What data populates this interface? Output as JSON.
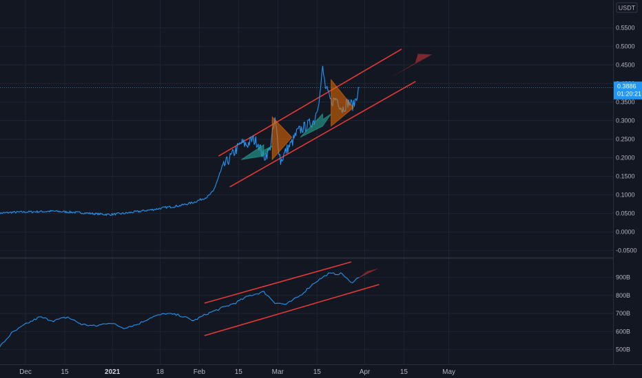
{
  "chart_data": [
    {
      "type": "line",
      "panel": "price",
      "currency": "USDT",
      "y_ticks": [
        "0.5500",
        "0.5000",
        "0.4500",
        "0.4000",
        "0.3500",
        "0.3000",
        "0.2500",
        "0.2000",
        "0.1500",
        "0.1000",
        "0.0500",
        "0.0000",
        "-0.0500"
      ],
      "current_price": "0.3886",
      "countdown": "01:20:21",
      "ylim": [
        -0.06,
        0.61
      ],
      "series_color": "#2196f3",
      "x": [
        "2020-11-21",
        "2020-11-26",
        "2020-12-01",
        "2020-12-06",
        "2020-12-11",
        "2020-12-16",
        "2020-12-21",
        "2020-12-26",
        "2020-12-31",
        "2021-01-05",
        "2021-01-10",
        "2021-01-15",
        "2021-01-20",
        "2021-01-25",
        "2021-01-30",
        "2021-02-04",
        "2021-02-06",
        "2021-02-08",
        "2021-02-10",
        "2021-02-12",
        "2021-02-14",
        "2021-02-16",
        "2021-02-18",
        "2021-02-20",
        "2021-02-22",
        "2021-02-24",
        "2021-02-26",
        "2021-02-28",
        "2021-03-02",
        "2021-03-04",
        "2021-03-06",
        "2021-03-08",
        "2021-03-10",
        "2021-03-12",
        "2021-03-14",
        "2021-03-16",
        "2021-03-17",
        "2021-03-18",
        "2021-03-20",
        "2021-03-22",
        "2021-03-24",
        "2021-03-26",
        "2021-03-28",
        "2021-03-30"
      ],
      "values": [
        0.05,
        0.053,
        0.054,
        0.055,
        0.056,
        0.054,
        0.052,
        0.049,
        0.047,
        0.05,
        0.055,
        0.06,
        0.066,
        0.071,
        0.08,
        0.095,
        0.11,
        0.15,
        0.18,
        0.2,
        0.22,
        0.24,
        0.235,
        0.25,
        0.24,
        0.2,
        0.22,
        0.3,
        0.19,
        0.22,
        0.24,
        0.27,
        0.28,
        0.29,
        0.3,
        0.37,
        0.44,
        0.39,
        0.35,
        0.36,
        0.33,
        0.35,
        0.34,
        0.3886
      ],
      "annotations": {
        "channel_color": "#e53935",
        "triangle_color": "#ef6c00",
        "arrow_color": "#26a69a"
      }
    },
    {
      "type": "line",
      "panel": "indicator",
      "y_ticks": [
        "900B",
        "800B",
        "700B",
        "600B",
        "500B"
      ],
      "ylim": [
        430,
        990
      ],
      "series_color": "#2196f3",
      "x": [
        "2020-11-21",
        "2020-11-26",
        "2020-12-01",
        "2020-12-06",
        "2020-12-11",
        "2020-12-16",
        "2020-12-21",
        "2020-12-26",
        "2020-12-31",
        "2021-01-05",
        "2021-01-10",
        "2021-01-15",
        "2021-01-20",
        "2021-01-25",
        "2021-01-30",
        "2021-02-04",
        "2021-02-09",
        "2021-02-14",
        "2021-02-19",
        "2021-02-24",
        "2021-02-28",
        "2021-03-04",
        "2021-03-09",
        "2021-03-14",
        "2021-03-19",
        "2021-03-24",
        "2021-03-27",
        "2021-03-30"
      ],
      "values": [
        500,
        590,
        640,
        680,
        660,
        680,
        640,
        630,
        650,
        620,
        640,
        680,
        700,
        690,
        660,
        700,
        730,
        760,
        800,
        820,
        760,
        750,
        800,
        870,
        920,
        920,
        870,
        900
      ]
    }
  ],
  "x_ticks": [
    {
      "label": "Dec",
      "bold": false
    },
    {
      "label": "15",
      "bold": false
    },
    {
      "label": "2021",
      "bold": true
    },
    {
      "label": "18",
      "bold": false
    },
    {
      "label": "Feb",
      "bold": false
    },
    {
      "label": "15",
      "bold": false
    },
    {
      "label": "Mar",
      "bold": false
    },
    {
      "label": "15",
      "bold": false
    },
    {
      "label": "Apr",
      "bold": false
    },
    {
      "label": "15",
      "bold": false
    },
    {
      "label": "May",
      "bold": false
    }
  ]
}
